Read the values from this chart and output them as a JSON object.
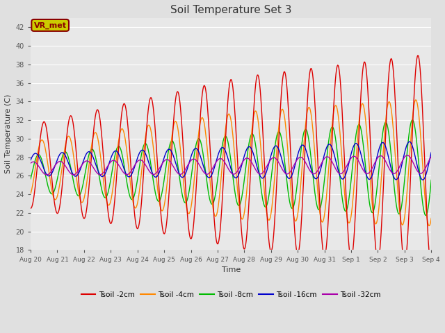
{
  "title": "Soil Temperature Set 3",
  "xlabel": "Time",
  "ylabel": "Soil Temperature (C)",
  "ylim": [
    18,
    43
  ],
  "yticks": [
    18,
    20,
    22,
    24,
    26,
    28,
    30,
    32,
    34,
    36,
    38,
    40,
    42
  ],
  "xlim_start": 0,
  "xlim_end": 15,
  "bg_color": "#e0e0e0",
  "plot_bg_color": "#e8e8e8",
  "grid_color": "#ffffff",
  "annotation_text": "VR_met",
  "annotation_bg": "#cccc00",
  "annotation_fg": "#880000",
  "colors": {
    "2cm": "#dd0000",
    "4cm": "#ff8800",
    "8cm": "#00bb00",
    "16cm": "#0000cc",
    "32cm": "#aa00aa"
  },
  "legend_labels": [
    "Tsoil -2cm",
    "Tsoil -4cm",
    "Tsoil -8cm",
    "Tsoil -16cm",
    "Tsoil -32cm"
  ],
  "xtick_labels": [
    "Aug 20",
    "Aug 21",
    "Aug 22",
    "Aug 23",
    "Aug 24",
    "Aug 25",
    "Aug 26",
    "Aug 27",
    "Aug 28",
    "Aug 29",
    "Aug 30",
    "Aug 31",
    "Sep 1",
    "Sep 2",
    "Sep 3",
    "Sep 4"
  ],
  "linewidth": 1.0
}
